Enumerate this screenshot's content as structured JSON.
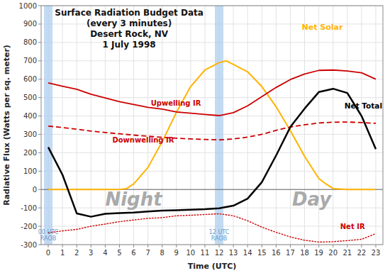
{
  "chart_data": {
    "type": "line",
    "title": "Surface Radiation Budget Data\n(every 3 minutes)\nDesert Rock, NV\n1 July 1998",
    "x_label": "Time (UTC)",
    "y_label": "Radiative Flux (Watts per sq. meter)",
    "xlim": [
      -0.5,
      23.5
    ],
    "ylim": [
      -300,
      1000
    ],
    "xticks": [
      0,
      1,
      2,
      3,
      4,
      5,
      6,
      7,
      8,
      9,
      10,
      11,
      12,
      13,
      14,
      15,
      16,
      17,
      18,
      19,
      20,
      21,
      22,
      23
    ],
    "yticks": [
      -300,
      -200,
      -100,
      0,
      100,
      200,
      300,
      400,
      500,
      600,
      700,
      800,
      900,
      1000
    ],
    "grid": true,
    "series": [
      {
        "name": "Net Solar",
        "color": "#FFB300",
        "line_style": "solid",
        "x": [
          0,
          1,
          2,
          3,
          4,
          5,
          5.5,
          6,
          7,
          8,
          9,
          10,
          11,
          12,
          12.5,
          13,
          14,
          15,
          16,
          17,
          18,
          19,
          19.5,
          20,
          21,
          22,
          23
        ],
        "values": [
          0,
          0,
          0,
          0,
          0,
          0,
          5,
          30,
          120,
          260,
          420,
          560,
          650,
          690,
          700,
          680,
          640,
          560,
          450,
          320,
          180,
          60,
          30,
          5,
          0,
          0,
          0
        ]
      },
      {
        "name": "Upwelling IR",
        "color": "#cc0000",
        "line_style": "solid",
        "x": [
          0,
          1,
          2,
          3,
          4,
          5,
          6,
          7,
          8,
          9,
          10,
          11,
          12,
          13,
          14,
          15,
          16,
          17,
          18,
          19,
          20,
          21,
          22,
          23
        ],
        "values": [
          580,
          562,
          545,
          518,
          498,
          478,
          462,
          447,
          437,
          422,
          415,
          408,
          402,
          418,
          455,
          505,
          555,
          598,
          628,
          648,
          650,
          645,
          635,
          600
        ]
      },
      {
        "name": "Downwelling IR",
        "color": "#cc0000",
        "line_style": "dashed",
        "x": [
          0,
          1,
          2,
          3,
          4,
          5,
          6,
          7,
          8,
          9,
          10,
          11,
          12,
          13,
          14,
          15,
          16,
          17,
          18,
          19,
          20,
          21,
          22,
          23
        ],
        "values": [
          345,
          337,
          328,
          318,
          310,
          303,
          296,
          290,
          284,
          279,
          275,
          272,
          270,
          275,
          285,
          300,
          322,
          340,
          352,
          362,
          366,
          367,
          364,
          360
        ]
      },
      {
        "name": "Net Total",
        "color": "#000000",
        "line_style": "solid",
        "x": [
          0,
          1,
          2,
          3,
          4,
          5,
          6,
          7,
          8,
          9,
          10,
          11,
          12,
          13,
          14,
          15,
          16,
          17,
          18,
          19,
          20,
          21,
          22,
          23
        ],
        "values": [
          230,
          80,
          -130,
          -148,
          -132,
          -128,
          -125,
          -120,
          -115,
          -113,
          -110,
          -107,
          -102,
          -88,
          -50,
          40,
          185,
          340,
          440,
          530,
          548,
          525,
          400,
          220
        ]
      },
      {
        "name": "Net IR",
        "color": "#cc0000",
        "line_style": "dotted",
        "x": [
          0,
          1,
          2,
          3,
          4,
          5,
          6,
          7,
          8,
          9,
          10,
          11,
          12,
          13,
          14,
          15,
          16,
          17,
          18,
          19,
          20,
          21,
          22,
          23
        ],
        "values": [
          -235,
          -225,
          -217,
          -200,
          -188,
          -175,
          -166,
          -157,
          -153,
          -143,
          -140,
          -136,
          -132,
          -143,
          -170,
          -205,
          -233,
          -258,
          -276,
          -286,
          -284,
          -278,
          -271,
          -240
        ]
      }
    ],
    "bands": [
      {
        "x": 0,
        "label": "00 UTC\nRAOB",
        "color": "#aaccee"
      },
      {
        "x": 12,
        "label": "12 UTC\nRAOB",
        "color": "#aaccee"
      }
    ],
    "annotations": [
      {
        "text": "Night",
        "x": 6.0,
        "y": -55,
        "color": "#aaaaaa"
      },
      {
        "text": "Day",
        "x": 18.5,
        "y": -55,
        "color": "#aaaaaa"
      }
    ]
  }
}
